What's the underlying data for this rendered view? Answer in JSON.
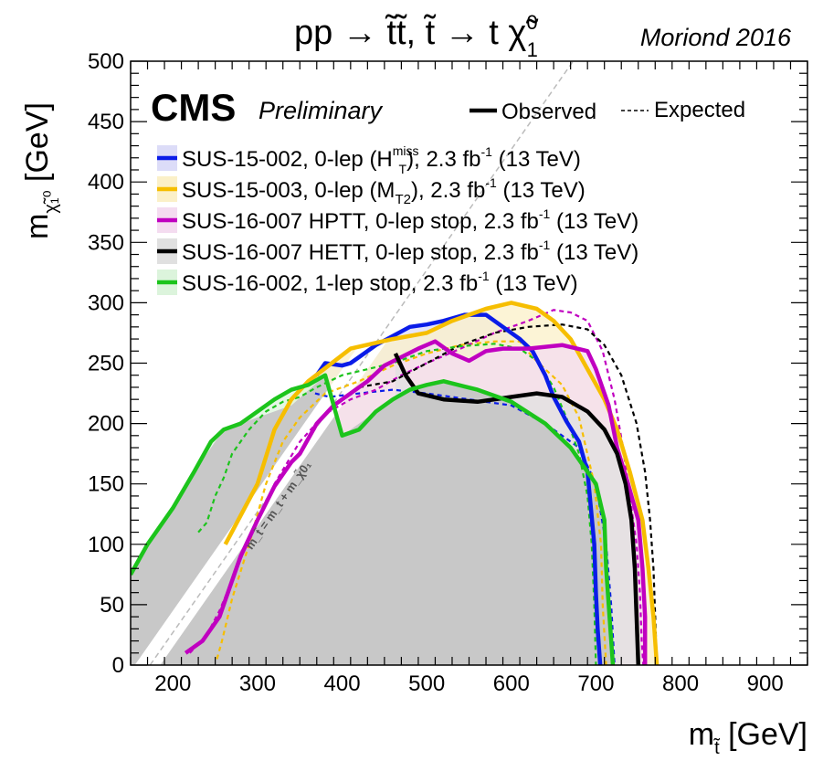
{
  "header": {
    "title_main": "pp → t̃t̃,  t̃ → t χ̃",
    "title_sup": "0",
    "title_sub": "1",
    "conference": "Moriond 2016"
  },
  "branding": {
    "experiment": "CMS",
    "status": "Preliminary"
  },
  "style_legend": {
    "observed": "Observed",
    "expected": "Expected"
  },
  "diagonal_label": "m_t̃ = m_t + m_χ̃0₁",
  "chart_data": {
    "type": "line",
    "xlabel": "m_t̃ [GeV]",
    "ylabel": "m_χ̃0₁ [GeV]",
    "xlim": [
      150,
      950
    ],
    "ylim": [
      0,
      500
    ],
    "xticks": [
      "200",
      "300",
      "400",
      "500",
      "600",
      "700",
      "800",
      "900"
    ],
    "yticks": [
      "0",
      "50",
      "100",
      "150",
      "200",
      "250",
      "300",
      "350",
      "400",
      "450",
      "500"
    ],
    "diagonal_offset": 173,
    "series": [
      {
        "name": "SUS-15-002, 0-lep (H_T^miss), 2.3 fb-1 (13 TeV)",
        "legend": {
          "pre": "SUS-15-002, 0-lep (H",
          "sub": "T",
          "sup": "miss",
          "post": "), 2.3 fb",
          "lumi_sup": "-1",
          "tail": " (13 TeV)"
        },
        "color": "#0a1ce8",
        "fill": "#dcdcf8",
        "observed": [
          [
            370,
            240
          ],
          [
            380,
            250
          ],
          [
            400,
            248
          ],
          [
            410,
            250
          ],
          [
            440,
            265
          ],
          [
            480,
            280
          ],
          [
            500,
            282
          ],
          [
            520,
            285
          ],
          [
            545,
            290
          ],
          [
            570,
            290
          ],
          [
            590,
            280
          ],
          [
            610,
            270
          ],
          [
            625,
            260
          ],
          [
            640,
            240
          ],
          [
            650,
            222
          ],
          [
            665,
            202
          ],
          [
            680,
            185
          ],
          [
            690,
            160
          ],
          [
            698,
            100
          ],
          [
            700,
            60
          ],
          [
            702,
            30
          ],
          [
            705,
            0
          ]
        ],
        "expected": [
          [
            368,
            225
          ],
          [
            385,
            222
          ],
          [
            420,
            225
          ],
          [
            460,
            228
          ],
          [
            500,
            225
          ],
          [
            550,
            220
          ],
          [
            600,
            215
          ],
          [
            640,
            200
          ],
          [
            680,
            180
          ],
          [
            700,
            150
          ],
          [
            712,
            100
          ],
          [
            718,
            50
          ],
          [
            722,
            0
          ]
        ]
      },
      {
        "name": "SUS-15-003, 0-lep (M_T2), 2.3 fb-1 (13 TeV)",
        "legend": {
          "pre": "SUS-15-003, 0-lep (M",
          "sub": "T2",
          "sup": "",
          "post": "), 2.3 fb",
          "lumi_sup": "-1",
          "tail": " (13 TeV)"
        },
        "color": "#f6be00",
        "fill": "#fbf0c8",
        "observed": [
          [
            262,
            100
          ],
          [
            300,
            150
          ],
          [
            320,
            195
          ],
          [
            340,
            220
          ],
          [
            360,
            235
          ],
          [
            410,
            262
          ],
          [
            460,
            270
          ],
          [
            500,
            275
          ],
          [
            530,
            285
          ],
          [
            570,
            295
          ],
          [
            600,
            300
          ],
          [
            630,
            295
          ],
          [
            650,
            285
          ],
          [
            670,
            270
          ],
          [
            690,
            245
          ],
          [
            710,
            220
          ],
          [
            725,
            195
          ],
          [
            740,
            160
          ],
          [
            755,
            120
          ],
          [
            762,
            80
          ],
          [
            768,
            40
          ],
          [
            772,
            0
          ]
        ],
        "expected": [
          [
            252,
            5
          ],
          [
            258,
            20
          ],
          [
            270,
            55
          ],
          [
            290,
            100
          ],
          [
            310,
            150
          ],
          [
            330,
            185
          ],
          [
            350,
            205
          ],
          [
            380,
            225
          ],
          [
            420,
            235
          ],
          [
            460,
            248
          ],
          [
            500,
            258
          ],
          [
            540,
            265
          ],
          [
            580,
            268
          ],
          [
            610,
            268
          ],
          [
            625,
            255
          ],
          [
            640,
            245
          ],
          [
            660,
            232
          ],
          [
            680,
            205
          ],
          [
            698,
            150
          ],
          [
            706,
            100
          ],
          [
            708,
            50
          ],
          [
            712,
            0
          ]
        ]
      },
      {
        "name": "SUS-16-007 HPTT, 0-lep stop, 2.3 fb-1 (13 TeV)",
        "legend": {
          "pre": "SUS-16-007 HPTT, 0-lep stop, 2.3 fb",
          "sub": "",
          "sup": "",
          "post": "",
          "lumi_sup": "-1",
          "tail": " (13 TeV)"
        },
        "color": "#c000c0",
        "fill": "#f4dcf0",
        "observed": [
          [
            215,
            10
          ],
          [
            235,
            20
          ],
          [
            255,
            40
          ],
          [
            265,
            60
          ],
          [
            280,
            90
          ],
          [
            300,
            120
          ],
          [
            320,
            148
          ],
          [
            340,
            168
          ],
          [
            350,
            175
          ],
          [
            370,
            200
          ],
          [
            390,
            215
          ],
          [
            410,
            225
          ],
          [
            430,
            235
          ],
          [
            450,
            248
          ],
          [
            470,
            255
          ],
          [
            490,
            262
          ],
          [
            510,
            268
          ],
          [
            530,
            258
          ],
          [
            550,
            252
          ],
          [
            570,
            260
          ],
          [
            590,
            262
          ],
          [
            620,
            262
          ],
          [
            660,
            265
          ],
          [
            690,
            260
          ],
          [
            700,
            245
          ],
          [
            715,
            215
          ],
          [
            725,
            180
          ],
          [
            738,
            150
          ],
          [
            750,
            120
          ],
          [
            755,
            80
          ],
          [
            758,
            40
          ],
          [
            758,
            0
          ]
        ],
        "expected": [
          [
            220,
            10
          ],
          [
            240,
            25
          ],
          [
            255,
            45
          ],
          [
            270,
            70
          ],
          [
            290,
            105
          ],
          [
            320,
            150
          ],
          [
            350,
            185
          ],
          [
            380,
            208
          ],
          [
            410,
            220
          ],
          [
            440,
            228
          ],
          [
            470,
            240
          ],
          [
            500,
            250
          ],
          [
            540,
            262
          ],
          [
            580,
            275
          ],
          [
            620,
            285
          ],
          [
            650,
            294
          ],
          [
            670,
            292
          ],
          [
            690,
            285
          ],
          [
            708,
            260
          ],
          [
            722,
            220
          ],
          [
            732,
            180
          ],
          [
            740,
            140
          ],
          [
            748,
            100
          ],
          [
            752,
            60
          ],
          [
            754,
            20
          ],
          [
            756,
            0
          ]
        ]
      },
      {
        "name": "SUS-16-007 HETT, 0-lep stop, 2.3 fb-1 (13 TeV)",
        "legend": {
          "pre": "SUS-16-007 HETT, 0-lep stop, 2.3 fb",
          "sub": "",
          "sup": "",
          "post": "",
          "lumi_sup": "-1",
          "tail": " (13 TeV)"
        },
        "color": "#000000",
        "fill": "#e0e0e0",
        "observed": [
          [
            463,
            258
          ],
          [
            475,
            240
          ],
          [
            490,
            225
          ],
          [
            520,
            220
          ],
          [
            560,
            218
          ],
          [
            600,
            222
          ],
          [
            630,
            225
          ],
          [
            660,
            222
          ],
          [
            690,
            210
          ],
          [
            710,
            195
          ],
          [
            725,
            175
          ],
          [
            735,
            150
          ],
          [
            742,
            120
          ],
          [
            746,
            80
          ],
          [
            748,
            40
          ],
          [
            750,
            0
          ]
        ],
        "expected": [
          [
            420,
            230
          ],
          [
            460,
            235
          ],
          [
            500,
            250
          ],
          [
            540,
            265
          ],
          [
            580,
            275
          ],
          [
            620,
            280
          ],
          [
            660,
            282
          ],
          [
            690,
            278
          ],
          [
            710,
            265
          ],
          [
            730,
            240
          ],
          [
            748,
            200
          ],
          [
            758,
            160
          ],
          [
            764,
            120
          ],
          [
            768,
            80
          ],
          [
            770,
            40
          ],
          [
            772,
            0
          ]
        ]
      },
      {
        "name": "SUS-16-002, 1-lep stop, 2.3 fb-1 (13 TeV)",
        "legend": {
          "pre": "SUS-16-002, 1-lep stop, 2.3 fb",
          "sub": "",
          "sup": "",
          "post": "",
          "lumi_sup": "-1",
          "tail": " (13 TeV)"
        },
        "color": "#1cc41c",
        "fill": "#dcf4dc",
        "observed": [
          [
            150,
            75
          ],
          [
            170,
            100
          ],
          [
            200,
            130
          ],
          [
            225,
            160
          ],
          [
            245,
            185
          ],
          [
            260,
            195
          ],
          [
            280,
            200
          ],
          [
            300,
            210
          ],
          [
            320,
            220
          ],
          [
            340,
            228
          ],
          [
            360,
            232
          ],
          [
            380,
            240
          ],
          [
            400,
            190
          ],
          [
            420,
            195
          ],
          [
            440,
            210
          ],
          [
            460,
            220
          ],
          [
            480,
            228
          ],
          [
            500,
            232
          ],
          [
            520,
            235
          ],
          [
            560,
            228
          ],
          [
            600,
            218
          ],
          [
            640,
            200
          ],
          [
            670,
            180
          ],
          [
            700,
            150
          ],
          [
            710,
            120
          ],
          [
            712,
            80
          ],
          [
            716,
            40
          ],
          [
            720,
            0
          ]
        ],
        "expected": [
          [
            230,
            110
          ],
          [
            240,
            118
          ],
          [
            250,
            140
          ],
          [
            260,
            155
          ],
          [
            270,
            175
          ],
          [
            290,
            195
          ],
          [
            310,
            210
          ],
          [
            330,
            218
          ],
          [
            350,
            222
          ],
          [
            370,
            230
          ],
          [
            400,
            240
          ],
          [
            430,
            245
          ],
          [
            460,
            250
          ],
          [
            500,
            260
          ],
          [
            540,
            264
          ],
          [
            580,
            266
          ],
          [
            610,
            262
          ],
          [
            630,
            252
          ],
          [
            650,
            230
          ],
          [
            665,
            205
          ],
          [
            680,
            175
          ],
          [
            690,
            140
          ],
          [
            695,
            100
          ],
          [
            698,
            50
          ],
          [
            700,
            0
          ]
        ]
      }
    ],
    "excluded_region_color": "#c8c8c8"
  }
}
